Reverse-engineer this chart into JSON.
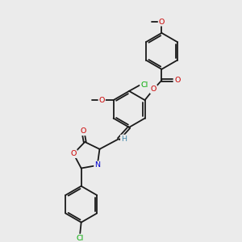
{
  "bg_color": "#ebebeb",
  "bond_color": "#1a1a1a",
  "atom_colors": {
    "O": "#cc0000",
    "N": "#0000cc",
    "Cl": "#00aa00",
    "H": "#4488aa",
    "C": "#1a1a1a"
  },
  "font_size": 6.8,
  "lw": 1.3,
  "dbo": 0.052,
  "r6": 0.78,
  "r5": 0.6
}
